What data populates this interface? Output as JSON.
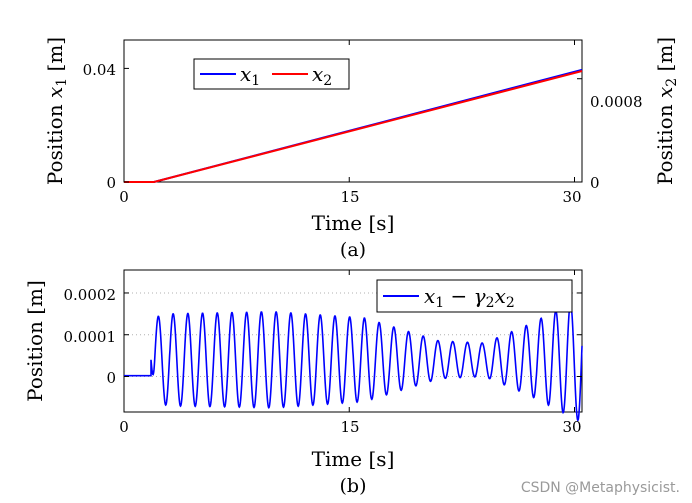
{
  "chart_data": [
    {
      "id": "a",
      "type": "line",
      "panel_label": "(a)",
      "xlabel": "Time [s]",
      "ylabel_left": "Position x_1 [m]",
      "ylabel_right": "Position x_2 [m]",
      "xlim": [
        0,
        30.5
      ],
      "ylim_left": [
        0,
        0.05
      ],
      "ylim_right": [
        0,
        0.0011
      ],
      "xticks": [
        "0",
        "15",
        "30"
      ],
      "yticks_left": [
        "0",
        "0.04"
      ],
      "yticks_right": [
        "0",
        "0.0008"
      ],
      "grid": false,
      "legend_position": "top-left",
      "series": [
        {
          "name": "x1",
          "axis": "left",
          "color": "#0000ff",
          "x": [
            0,
            2,
            30.5
          ],
          "y": [
            0,
            0,
            0.0395
          ]
        },
        {
          "name": "x2",
          "axis": "right",
          "color": "#ff0000",
          "x": [
            0,
            2,
            30.5
          ],
          "y": [
            0,
            0,
            0.00086
          ]
        }
      ],
      "legend": [
        {
          "label": "x",
          "sub": "1",
          "color": "#0000ff"
        },
        {
          "label": "x",
          "sub": "2",
          "color": "#ff0000"
        }
      ]
    },
    {
      "id": "b",
      "type": "line",
      "panel_label": "(b)",
      "xlabel": "Time [s]",
      "ylabel": "Position [m]",
      "xlim": [
        0,
        30.5
      ],
      "ylim": [
        -8.5e-05,
        0.000255
      ],
      "xticks": [
        "0",
        "15",
        "30"
      ],
      "yticks": [
        "0",
        "0.0001",
        "0.0002"
      ],
      "grid": true,
      "legend_position": "top-right",
      "series": [
        {
          "name": "x1 − γ2 x2",
          "color": "#0000ff",
          "flat": {
            "t_end": 1.8,
            "value": 2e-06
          },
          "oscillation": {
            "t_start": 1.8,
            "t_end": 30.5,
            "period": 0.98,
            "offset": 4e-05,
            "amplitude_envelope": {
              "t": [
                1.8,
                3,
                10,
                16,
                21,
                24,
                27,
                30.5
              ],
              "a": [
                0.0001,
                0.00011,
                0.000115,
                0.0001,
                4.5e-05,
                4e-05,
                8.5e-05,
                0.00015
              ]
            }
          }
        }
      ],
      "legend": [
        {
          "label": "x",
          "sub": "1",
          "mid": " − γ",
          "sub2": "2",
          "tail": "x",
          "sub3": "2",
          "color": "#0000ff"
        }
      ]
    }
  ],
  "watermark": "CSDN @Metaphysicist."
}
